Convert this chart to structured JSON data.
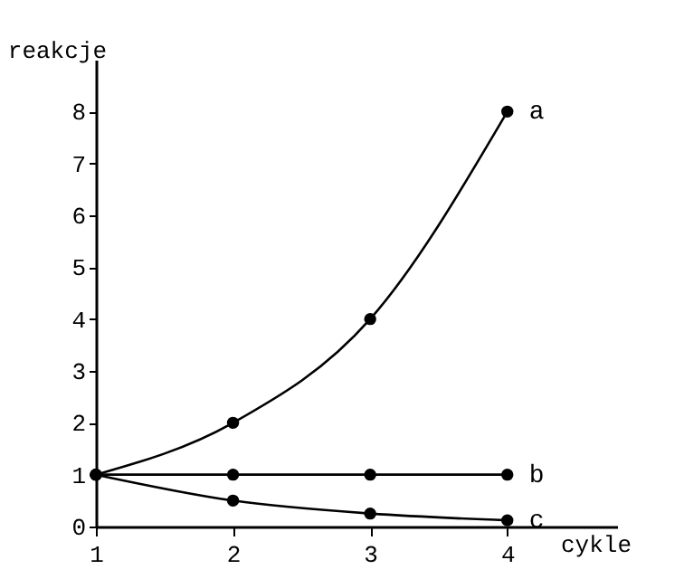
{
  "chart_data": {
    "type": "line",
    "xlabel": "cykle",
    "ylabel": "reakcje",
    "x": [
      1,
      2,
      3,
      4
    ],
    "xlim": [
      1,
      4.8
    ],
    "xticks": [
      1,
      2,
      3,
      4
    ],
    "ylim": [
      0,
      9
    ],
    "yticks": [
      0,
      1,
      2,
      3,
      4,
      5,
      6,
      7,
      8
    ],
    "grid": false,
    "marker": "circle",
    "line_style": "solid",
    "series": [
      {
        "name": "a",
        "color": "#000000",
        "values": [
          1,
          2,
          4,
          8
        ]
      },
      {
        "name": "b",
        "color": "#000000",
        "values": [
          1,
          1,
          1,
          1
        ]
      },
      {
        "name": "c",
        "color": "#000000",
        "values": [
          1,
          0.5,
          0.25,
          0.12
        ]
      }
    ]
  }
}
